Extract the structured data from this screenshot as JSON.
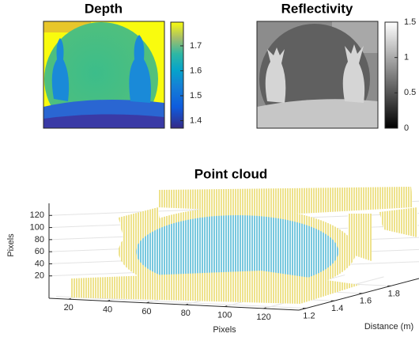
{
  "chart_data": [
    {
      "type": "image",
      "title": "Depth",
      "colormap": "parula",
      "clim": [
        1.37,
        1.795
      ],
      "cticks": [
        1.4,
        1.5,
        1.6,
        1.7
      ]
    },
    {
      "type": "image",
      "title": "Reflectivity",
      "colormap": "gray",
      "clim": [
        0,
        1.5
      ],
      "cticks": [
        0,
        0.5,
        1,
        1.5
      ]
    },
    {
      "type": "scatter3d",
      "title": "Point cloud",
      "xlabel": "Pixels",
      "ylabel": "Distance (m)",
      "zlabel": "Pixels",
      "xlim": [
        10,
        138
      ],
      "ylim": [
        1.15,
        2.0
      ],
      "zlim": [
        0,
        140
      ],
      "xticks": [
        20,
        40,
        60,
        80,
        100,
        120
      ],
      "yticks": [
        1.2,
        1.4,
        1.6,
        1.8
      ],
      "zticks": [
        20,
        40,
        60,
        80,
        100,
        120
      ],
      "grid": true
    }
  ]
}
